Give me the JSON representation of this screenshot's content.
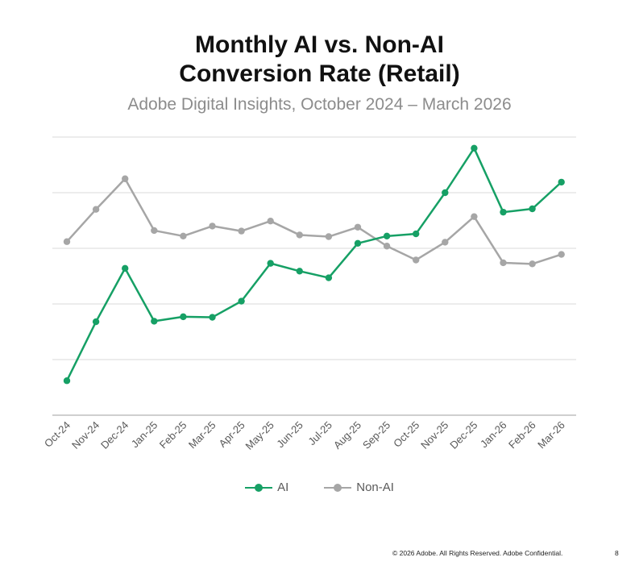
{
  "chart_data": {
    "type": "line",
    "title_line1": "Monthly AI vs. Non-AI",
    "title_line2": "Conversion Rate (Retail)",
    "subtitle": "Adobe Digital Insights, October 2024 – March 2026",
    "categories": [
      "Oct-24",
      "Nov-24",
      "Dec-24",
      "Jan-25",
      "Feb-25",
      "Mar-25",
      "Apr-25",
      "May-25",
      "Jun-25",
      "Jul-25",
      "Aug-25",
      "Sep-25",
      "Oct-25",
      "Nov-25",
      "Dec-25",
      "Jan-26",
      "Feb-26",
      "Mar-26"
    ],
    "ylim": [
      0,
      5
    ],
    "gridlines": true,
    "ytick_labels_shown": false,
    "series": [
      {
        "name": "AI",
        "color": "#16a065",
        "values": [
          0.62,
          1.68,
          2.64,
          1.69,
          1.77,
          1.76,
          2.05,
          2.73,
          2.59,
          2.47,
          3.09,
          3.22,
          3.26,
          4.0,
          4.8,
          3.65,
          3.71,
          4.19
        ]
      },
      {
        "name": "Non-AI",
        "color": "#a6a6a6",
        "values": [
          3.12,
          3.7,
          4.25,
          3.32,
          3.22,
          3.4,
          3.31,
          3.49,
          3.24,
          3.21,
          3.38,
          3.04,
          2.79,
          3.11,
          3.57,
          2.74,
          2.72,
          2.89
        ]
      }
    ],
    "legend_position": "bottom"
  },
  "footer": {
    "copyright": "© 2026 Adobe. All Rights Reserved. Adobe Confidential.",
    "page_number": "8"
  }
}
